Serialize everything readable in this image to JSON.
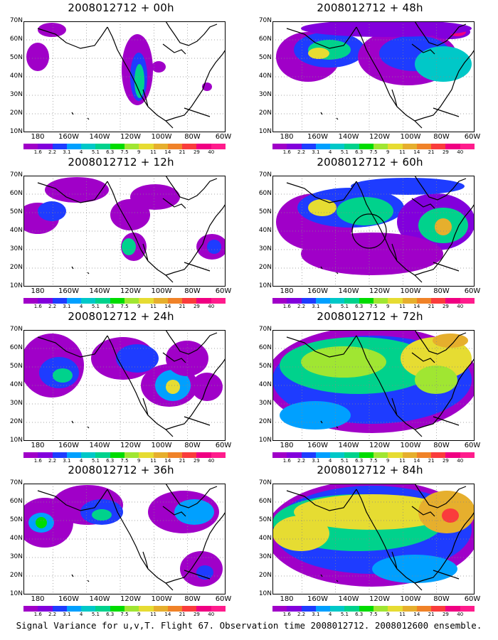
{
  "panels": [
    {
      "title": "2008012712 + 00h"
    },
    {
      "title": "2008012712 + 12h"
    },
    {
      "title": "2008012712 + 24h"
    },
    {
      "title": "2008012712 + 36h"
    },
    {
      "title": "2008012712 + 48h"
    },
    {
      "title": "2008012712 + 60h"
    },
    {
      "title": "2008012712 + 72h"
    },
    {
      "title": "2008012712 + 84h"
    }
  ],
  "axes": {
    "lat_labels": [
      "70N",
      "60N",
      "50N",
      "40N",
      "30N",
      "20N",
      "10N"
    ],
    "lon_labels": [
      "180",
      "160W",
      "140W",
      "120W",
      "100W",
      "80W",
      "60W"
    ]
  },
  "colorbar": {
    "labels": [
      "1.6",
      "2.2",
      "3.1",
      "4",
      "5.1",
      "6.3",
      "7.5",
      "9",
      "11",
      "14",
      "21",
      "29",
      "40"
    ],
    "colors": [
      "#a000c8",
      "#8200dc",
      "#1e3cff",
      "#00a0ff",
      "#00c8c8",
      "#00d28c",
      "#00dc00",
      "#a0e632",
      "#e6dc32",
      "#e6af2d",
      "#f08228",
      "#fa3c3c",
      "#f00082",
      "#ff1c8c"
    ]
  },
  "caption": "Signal Variance for u,v,T. Flight 67. Observation time 2008012712. 2008012600 ensemble."
}
